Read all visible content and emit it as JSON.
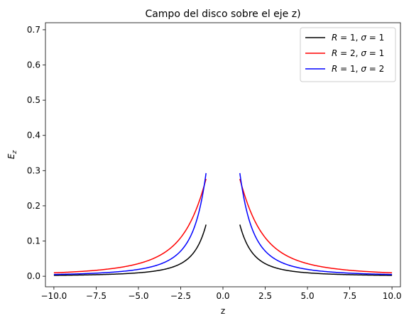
{
  "chart_data": {
    "type": "line",
    "title": "Campo del disco sobre el eje z)",
    "xlabel": "z",
    "ylabel": "E_z",
    "ylabel_main": "E",
    "ylabel_sub": "z",
    "xlim": [
      -10.5,
      10.5
    ],
    "ylim": [
      -0.03,
      0.72
    ],
    "xticks": [
      -10.0,
      -7.5,
      -5.0,
      -2.5,
      0.0,
      2.5,
      5.0,
      7.5,
      10.0
    ],
    "xtick_labels": [
      "−10.0",
      "−7.5",
      "−5.0",
      "−2.5",
      "0.0",
      "2.5",
      "5.0",
      "7.5",
      "10.0"
    ],
    "yticks": [
      0.0,
      0.1,
      0.2,
      0.3,
      0.4,
      0.5,
      0.6,
      0.7
    ],
    "ytick_labels": [
      "0.0",
      "0.1",
      "0.2",
      "0.3",
      "0.4",
      "0.5",
      "0.6",
      "0.7"
    ],
    "grid": false,
    "legend_position": "top-right",
    "x_range_left": [
      -10,
      -1
    ],
    "x_range_right": [
      1,
      10
    ],
    "series": [
      {
        "name": "R = 1, σ = 1",
        "legend_r": "1",
        "legend_s": "1",
        "R": 1,
        "sigma": 1,
        "color": "#000000"
      },
      {
        "name": "R = 2, σ = 1",
        "legend_r": "2",
        "legend_s": "1",
        "R": 2,
        "sigma": 1,
        "color": "#ff0000"
      },
      {
        "name": "R = 1, σ = 2",
        "legend_r": "1",
        "legend_s": "2",
        "R": 1,
        "sigma": 2,
        "color": "#0000ff"
      }
    ]
  }
}
